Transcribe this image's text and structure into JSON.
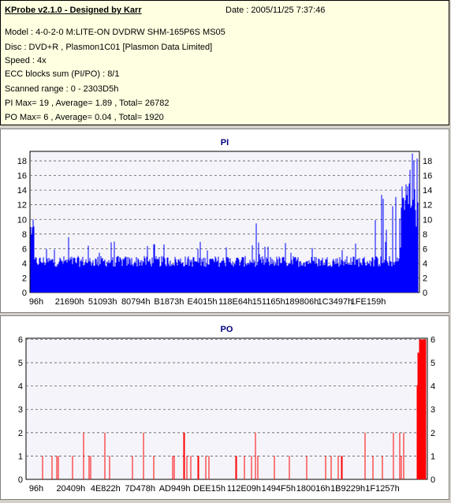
{
  "header": {
    "title": "KProbe v2.1.0 - Designed by Karr",
    "date": "Date : 2005/11/25 7:37:46",
    "model": "Model : 4-0-2-0 M:LITE-ON DVDRW SHM-165P6S MS05",
    "disc": "Disc : DVD+R , Plasmon1C01 [Plasmon Data Limited]",
    "speed": "Speed : 4x",
    "ecc": "ECC blocks sum (PI/PO) : 8/1",
    "range": "Scanned range : 0 - 2303D5h",
    "pi_stats": "PI Max= 19 , Average= 1.89 , Total= 26782",
    "po_stats": "PO Max= 6 , Average= 0.04 , Total= 1920"
  },
  "chart_data": [
    {
      "type": "bar",
      "title": "PI",
      "color": "#0000ff",
      "ylim": [
        0,
        19
      ],
      "yticks": [
        0,
        2,
        4,
        6,
        8,
        10,
        12,
        14,
        16,
        18
      ],
      "xticks": [
        "96h",
        "21690h",
        "51093h",
        "80794h",
        "B1873h",
        "E4015h",
        "118E64h",
        "151165h",
        "189806h",
        "1C3497h",
        "1FE159h"
      ],
      "grid": true,
      "summary": {
        "max": 19,
        "average": 1.89,
        "total": 26782
      }
    },
    {
      "type": "bar",
      "title": "PO",
      "color": "#ff0000",
      "ylim": [
        0,
        6
      ],
      "yticks": [
        0,
        1,
        2,
        3,
        4,
        5,
        6
      ],
      "xticks": [
        "96h",
        "20409h",
        "4E822h",
        "7D478h",
        "AD949h",
        "DEE15h",
        "112E09h",
        "1494F5h",
        "180016h",
        "1B9229h",
        "1F1257h"
      ],
      "grid": true,
      "summary": {
        "max": 6,
        "average": 0.04,
        "total": 1920
      }
    }
  ]
}
